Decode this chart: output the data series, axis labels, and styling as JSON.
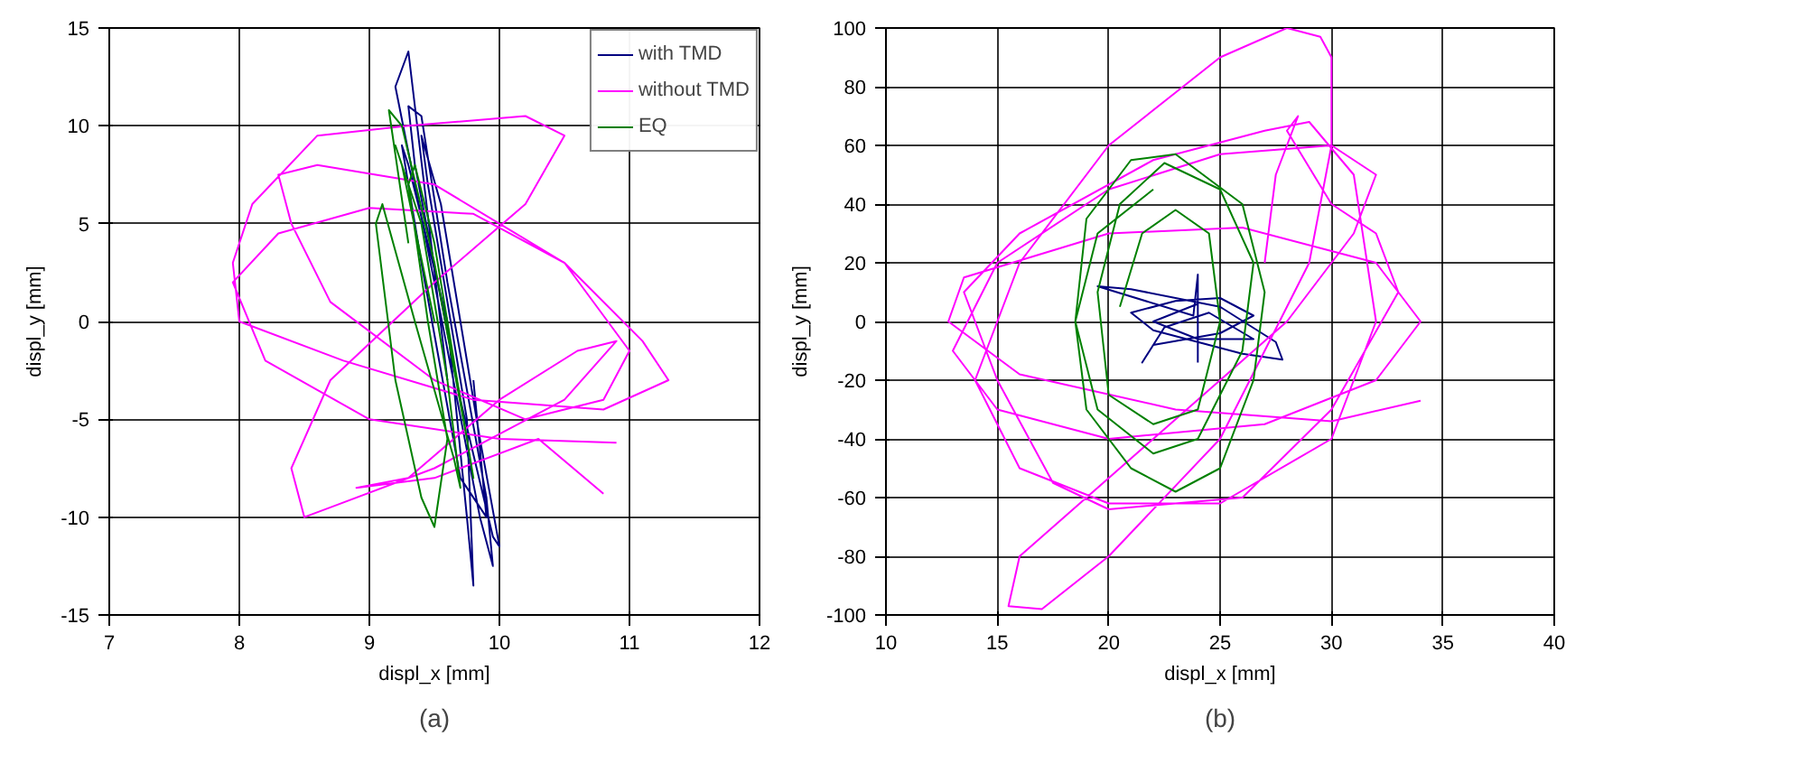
{
  "chart_data": [
    {
      "type": "line",
      "xlabel": "displ_x [mm]",
      "ylabel": "displ_y [mm]",
      "annotations": [
        "(a)"
      ],
      "xlim": [
        7,
        12
      ],
      "ylim": [
        -15,
        15
      ],
      "xticks": [
        7,
        8,
        9,
        10,
        11,
        12
      ],
      "yticks": [
        -15,
        -10,
        -5,
        0,
        5,
        10,
        15
      ],
      "grid": true,
      "legend": "top right",
      "line_style": "solid",
      "series": [
        {
          "name": "with TMD",
          "color": "#000080",
          "x": [
            9.6,
            9.3,
            9.2,
            9.5,
            9.85,
            9.95,
            9.9,
            9.6,
            9.4,
            9.3,
            9.35,
            9.7,
            9.95,
            10,
            9.85,
            9.55,
            9.4,
            9.45,
            9.75,
            9.8,
            9.75,
            9.6,
            9.3,
            9.25,
            9.4,
            9.7,
            9.9,
            9.8
          ],
          "values": [
            -3,
            13.8,
            12,
            2,
            -10,
            -12.5,
            -9,
            2,
            10.5,
            11,
            8,
            -4,
            -11,
            -11.5,
            -6,
            6,
            9.5,
            7,
            -5,
            -13.5,
            -10,
            0,
            8,
            9,
            3,
            -8,
            -10,
            -3
          ]
        },
        {
          "name": "without TMD",
          "color": "#ff00ff",
          "x": [
            10.9,
            10,
            9,
            8.2,
            7.95,
            8.3,
            9,
            9.8,
            10.5,
            11,
            10.8,
            10.2,
            9.5,
            8.7,
            8.4,
            8.3,
            8.6,
            9.5,
            10.5,
            11.1,
            11.3,
            10.8,
            9.8,
            8.8,
            8,
            7.95,
            8.1,
            8.6,
            9.3,
            10.2,
            10.5,
            10.2,
            9.5,
            8.7,
            8.4,
            8.5,
            8.7,
            9.5,
            10.5,
            10.9,
            10.6,
            10,
            9.3,
            8.9,
            9.5,
            10.3,
            10.8
          ],
          "values": [
            -6.2,
            -6,
            -5,
            -2,
            2,
            4.5,
            5.8,
            5.5,
            3,
            -1.5,
            -4,
            -5,
            -3,
            1,
            5,
            7.5,
            8,
            7,
            3,
            -1,
            -3,
            -4.5,
            -4,
            -2,
            0,
            3,
            6,
            9.5,
            10,
            10.5,
            9.5,
            6,
            2,
            -3,
            -7.5,
            -10,
            -9.5,
            -7.5,
            -4,
            -1,
            -1.5,
            -4,
            -8,
            -8.5,
            -8,
            -6,
            -8.8
          ]
        },
        {
          "name": "EQ",
          "color": "#008000",
          "x": [
            9.3,
            9.15,
            9.25,
            9.5,
            9.75,
            9.8,
            9.7,
            9.5,
            9.35,
            9.3,
            9.45,
            9.6,
            9.5,
            9.4,
            9.2,
            9.05,
            9.1,
            9.35,
            9.65,
            9.7,
            9.6,
            9.4,
            9.2,
            9.25,
            9.5
          ],
          "values": [
            4,
            10.8,
            10,
            3,
            -6,
            -8,
            -4,
            4,
            8,
            7,
            0,
            -6,
            -10.5,
            -9,
            -3,
            5,
            6,
            0,
            -7,
            -8.5,
            -3,
            5,
            9,
            8,
            0
          ]
        }
      ]
    },
    {
      "type": "line",
      "xlabel": "displ_x [mm]",
      "ylabel": "displ_y [mm]",
      "annotations": [
        "(b)"
      ],
      "xlim": [
        10,
        40
      ],
      "ylim": [
        -100,
        100
      ],
      "xticks": [
        10,
        15,
        20,
        25,
        30,
        35,
        40
      ],
      "yticks": [
        -100,
        -80,
        -60,
        -40,
        -20,
        0,
        20,
        40,
        60,
        80,
        100
      ],
      "grid": true,
      "line_style": "solid",
      "series": [
        {
          "color": "#000080",
          "x": [
            24,
            24,
            23.8,
            19.5,
            21,
            25,
            27.5,
            27.8,
            26,
            22,
            21,
            23,
            25,
            26.5,
            25,
            22,
            21.5,
            22.5,
            24.5,
            26.5,
            24,
            22,
            24
          ],
          "values": [
            -14,
            16,
            2,
            12,
            11,
            5,
            -7,
            -13,
            -11,
            -3,
            3,
            7,
            8,
            2,
            -4,
            -8,
            -14,
            -2,
            3,
            -6,
            -6,
            0,
            6
          ]
        },
        {
          "color": "#ff00ff",
          "x": [
            34,
            30,
            23,
            16,
            12.8,
            13.5,
            20,
            26,
            32,
            34,
            32,
            27,
            20,
            15,
            13,
            15,
            20,
            25,
            30,
            32,
            31,
            28,
            22,
            16,
            15.5,
            17,
            20,
            25,
            29,
            30,
            30,
            29.5,
            28,
            25,
            20,
            16,
            14,
            16,
            20,
            25,
            30,
            32,
            31,
            29,
            27,
            22,
            16,
            13.5,
            15,
            17.5,
            20,
            26,
            30,
            33,
            32,
            30,
            28,
            28.5,
            27.5,
            27
          ],
          "values": [
            -27,
            -34,
            -30,
            -18,
            0,
            15,
            30,
            32,
            20,
            0,
            -20,
            -35,
            -40,
            -30,
            -10,
            20,
            45,
            57,
            60,
            50,
            30,
            0,
            -40,
            -80,
            -97,
            -98,
            -80,
            -40,
            20,
            60,
            90,
            97,
            100,
            90,
            60,
            20,
            -20,
            -50,
            -62,
            -62,
            -40,
            0,
            50,
            68,
            65,
            55,
            30,
            10,
            -20,
            -55,
            -64,
            -60,
            -30,
            10,
            30,
            40,
            65,
            70,
            50,
            20
          ]
        },
        {
          "color": "#008000",
          "x": [
            22,
            19.5,
            18.5,
            19,
            21,
            23,
            25,
            26.5,
            27,
            26,
            23,
            21,
            19,
            18.5,
            19.5,
            22,
            24,
            26,
            26.5,
            25,
            22.5,
            20.5,
            19.5,
            20,
            22,
            24,
            25,
            24.5,
            23,
            21.5,
            20.5
          ],
          "values": [
            45,
            30,
            0,
            -30,
            -50,
            -58,
            -50,
            -20,
            10,
            40,
            57,
            55,
            35,
            0,
            -30,
            -45,
            -40,
            -10,
            20,
            45,
            54,
            40,
            10,
            -25,
            -35,
            -30,
            0,
            30,
            38,
            30,
            5
          ]
        }
      ]
    }
  ]
}
